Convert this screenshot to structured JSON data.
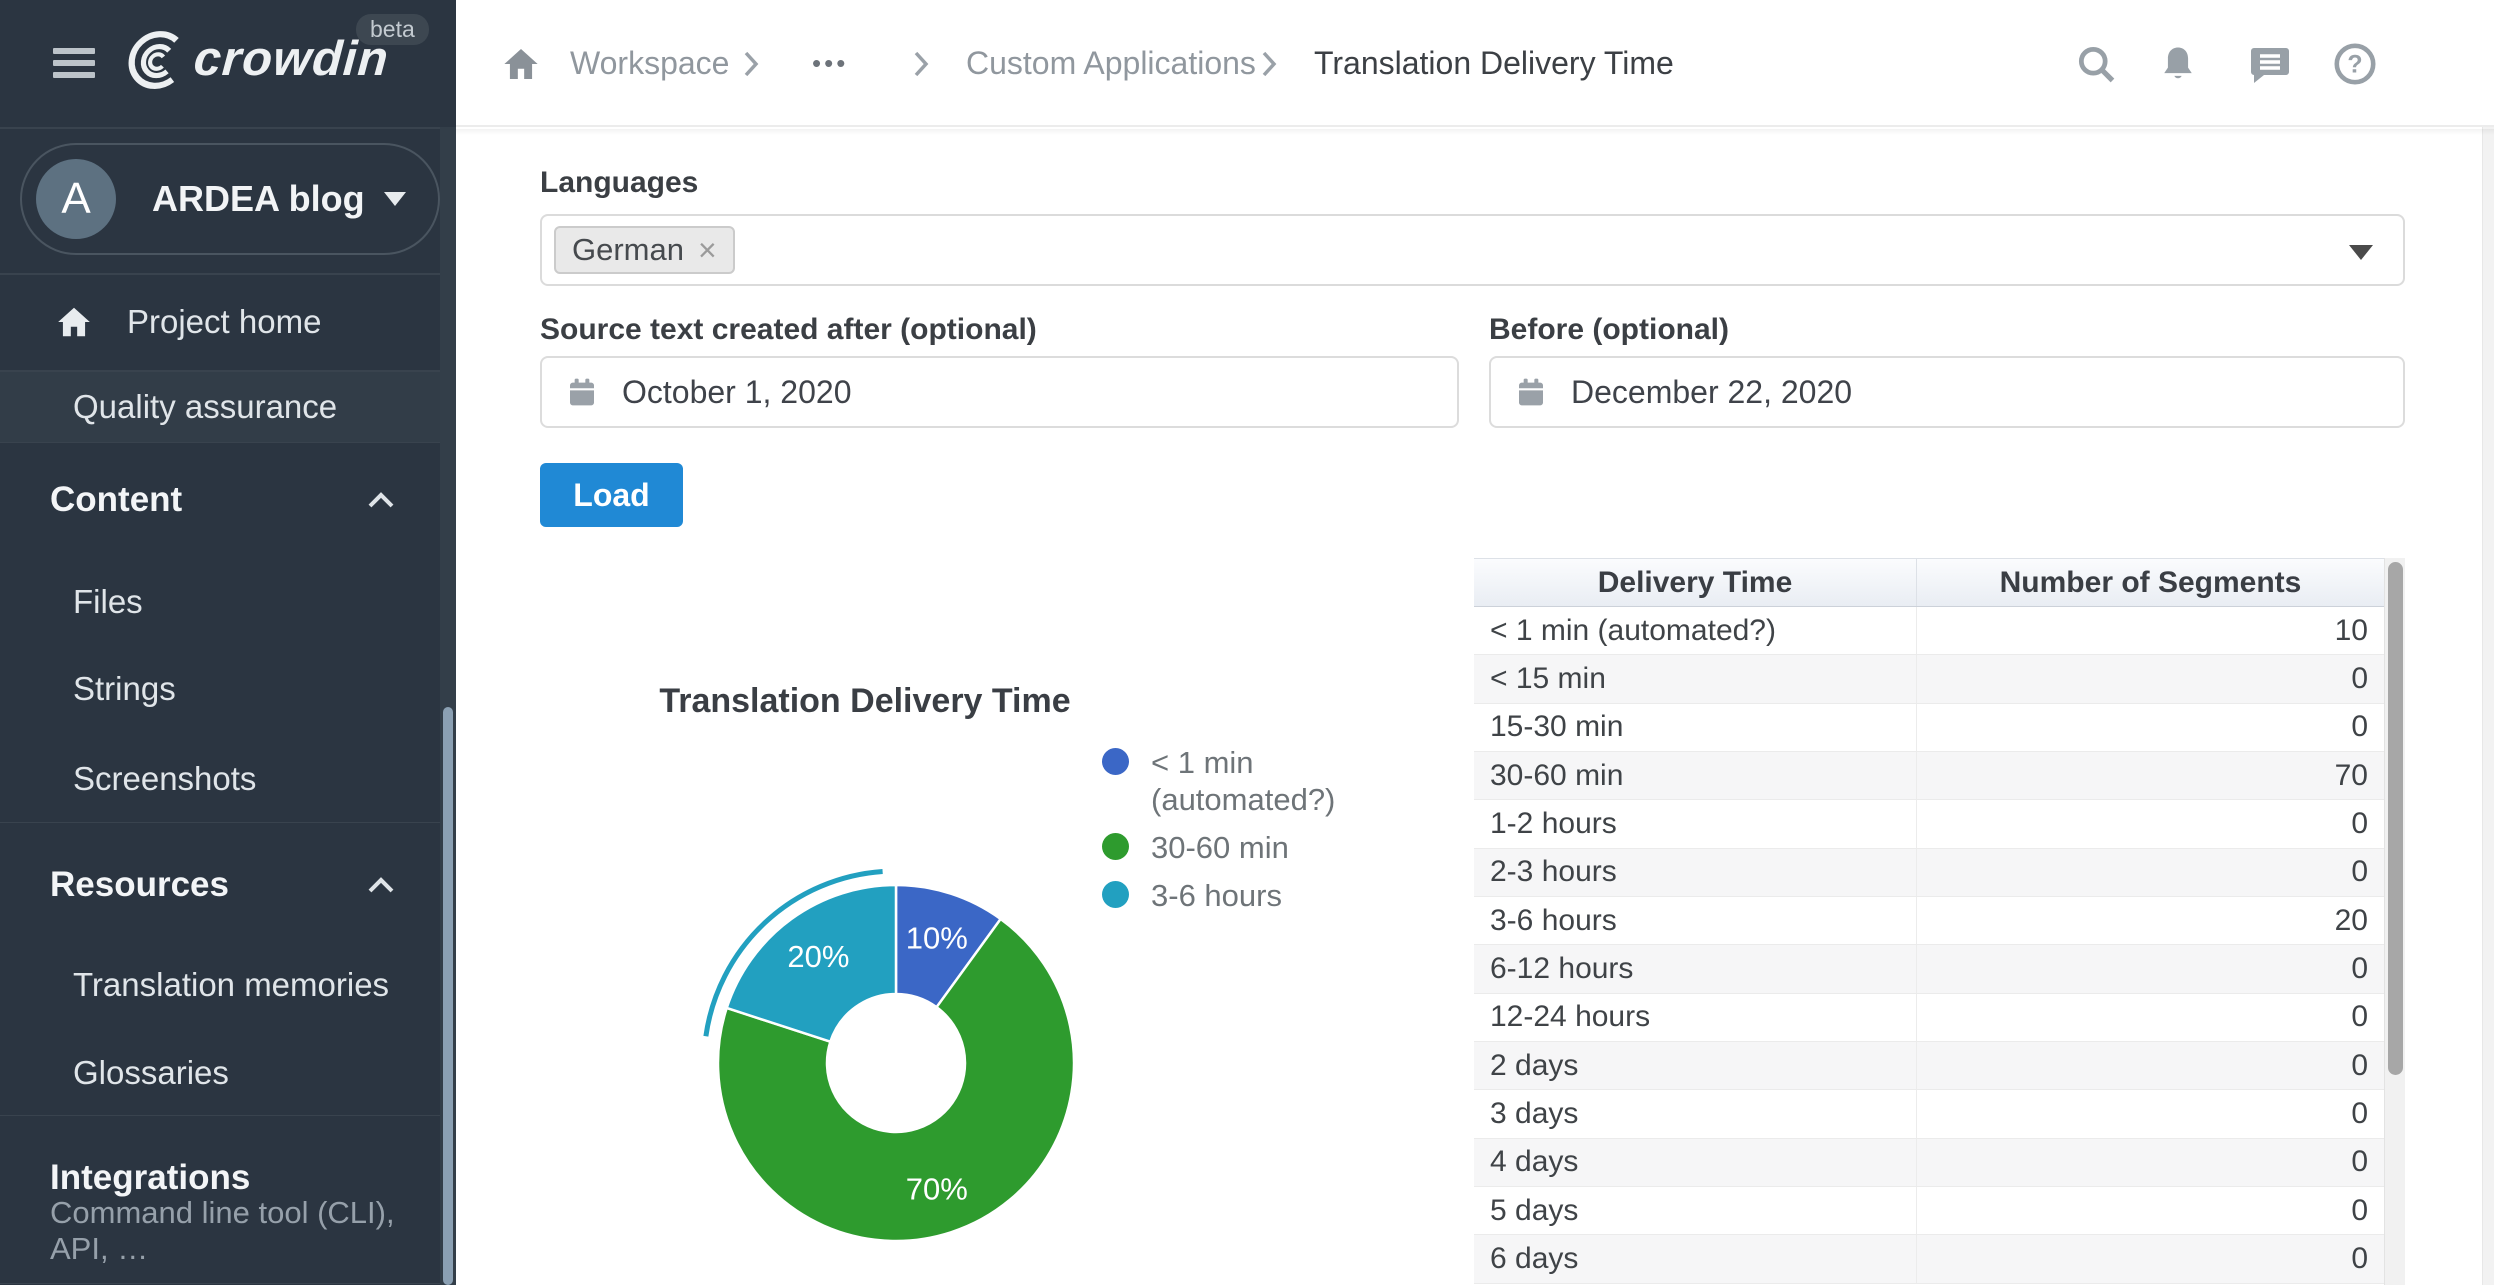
{
  "app": {
    "logo_text": "crowdin",
    "beta_label": "beta"
  },
  "header": {
    "breadcrumb": {
      "workspace": "Workspace",
      "ellipsis": "•••",
      "custom_apps": "Custom Applications",
      "current": "Translation Delivery Time"
    }
  },
  "sidebar": {
    "project": {
      "initial": "A",
      "name": "ARDEA blog"
    },
    "project_home": "Project home",
    "quality_assurance": "Quality assurance",
    "sections": [
      {
        "label": "Content",
        "items": [
          "Files",
          "Strings",
          "Screenshots"
        ]
      },
      {
        "label": "Resources",
        "items": [
          "Translation memories",
          "Glossaries"
        ]
      }
    ],
    "integrations": {
      "label": "Integrations",
      "subtext": "Command line tool (CLI), API, …"
    }
  },
  "filters": {
    "languages_label": "Languages",
    "language_chip": "German",
    "chip_remove": "×",
    "after_label": "Source text created after (optional)",
    "after_value": "October 1, 2020",
    "before_label": "Before (optional)",
    "before_value": "December 22, 2020",
    "load_label": "Load"
  },
  "chart_data": {
    "type": "pie",
    "donut": true,
    "title": "Translation Delivery Time",
    "categories": [
      "< 1 min (automated?)",
      "30-60 min",
      "3-6 hours"
    ],
    "values": [
      10,
      70,
      20
    ],
    "unit": "%",
    "slice_labels": [
      "10%",
      "70%",
      "20%"
    ],
    "colors": [
      "#3b67c6",
      "#2e9b2e",
      "#22a0c0"
    ],
    "legend": [
      [
        "< 1 min",
        "(automated?)"
      ],
      [
        "30-60 min"
      ],
      [
        "3-6 hours"
      ]
    ],
    "legend_position": "right",
    "highlighted_slice": 2
  },
  "table": {
    "headers": [
      "Delivery Time",
      "Number of Segments"
    ],
    "rows": [
      [
        "< 1 min (automated?)",
        "10"
      ],
      [
        "< 15 min",
        "0"
      ],
      [
        "15-30 min",
        "0"
      ],
      [
        "30-60 min",
        "70"
      ],
      [
        "1-2 hours",
        "0"
      ],
      [
        "2-3 hours",
        "0"
      ],
      [
        "3-6 hours",
        "20"
      ],
      [
        "6-12 hours",
        "0"
      ],
      [
        "12-24 hours",
        "0"
      ],
      [
        "2 days",
        "0"
      ],
      [
        "3 days",
        "0"
      ],
      [
        "4 days",
        "0"
      ],
      [
        "5 days",
        "0"
      ],
      [
        "6 days",
        "0"
      ]
    ]
  },
  "colors": {
    "accent": "#2089d5",
    "sidebar_bg": "#2b3541"
  }
}
